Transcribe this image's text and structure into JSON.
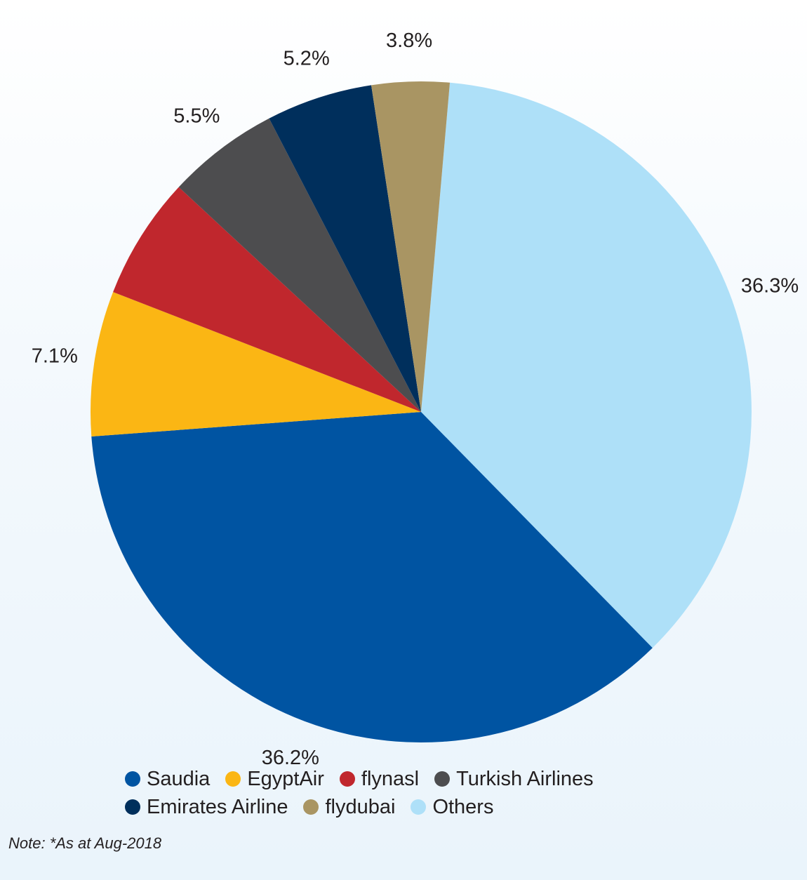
{
  "chart_data": {
    "type": "pie",
    "title": "",
    "slices": [
      {
        "name": "Others",
        "value": 36.3,
        "label": "36.3%",
        "color": "#aee0f8"
      },
      {
        "name": "Saudia",
        "value": 36.2,
        "label": "36.2%",
        "color": "#0054a2"
      },
      {
        "name": "EgyptAir",
        "value": 7.1,
        "label": "7.1%",
        "color": "#fbb614"
      },
      {
        "name": "flynasl",
        "value": 6.0,
        "label": "",
        "color": "#c0272d"
      },
      {
        "name": "Turkish Airlines",
        "value": 5.5,
        "label": "5.5%",
        "color": "#4d4d4f"
      },
      {
        "name": "Emirates Airline",
        "value": 5.2,
        "label": "5.2%",
        "color": "#002f5c"
      },
      {
        "name": "flydubai",
        "value": 3.8,
        "label": "3.8%",
        "color": "#a99563"
      }
    ],
    "legend": {
      "placement": "bottom",
      "rows": [
        [
          {
            "name": "Saudia",
            "color": "#0054a2"
          },
          {
            "name": "EgyptAir",
            "color": "#fbb614"
          },
          {
            "name": "flynasl",
            "color": "#c0272d"
          },
          {
            "name": "Turkish Airlines",
            "color": "#4d4d4f"
          }
        ],
        [
          {
            "name": "Emirates Airline",
            "color": "#002f5c"
          },
          {
            "name": "flydubai",
            "color": "#a99563"
          },
          {
            "name": "Others",
            "color": "#aee0f8"
          }
        ]
      ]
    },
    "note": "Note: *As at Aug-2018"
  }
}
